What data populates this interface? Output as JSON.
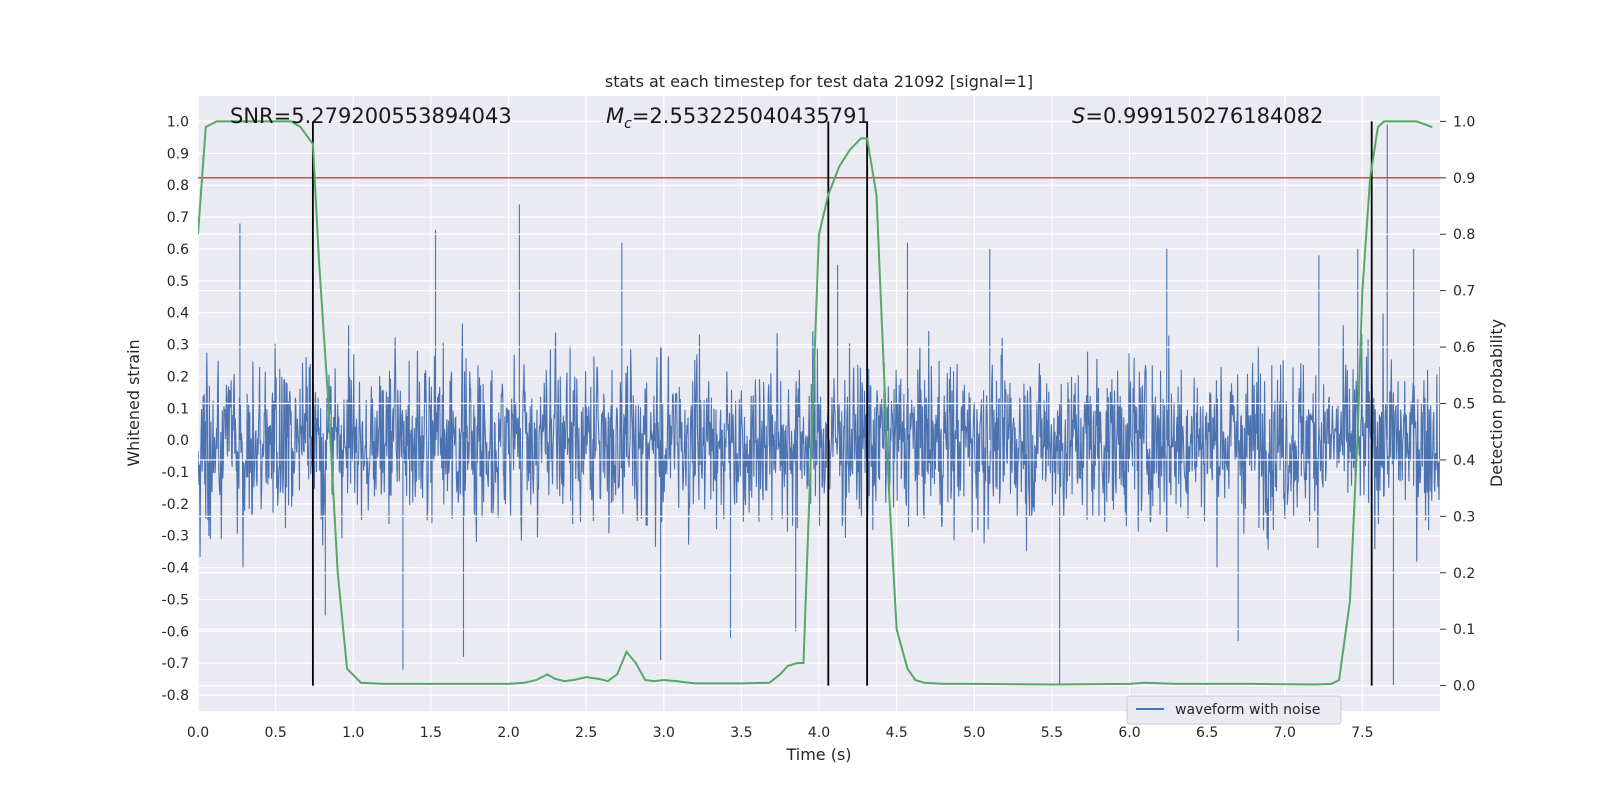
{
  "chart_data": {
    "type": "line",
    "title": "stats at each timestep for test data 21092 [signal=1]",
    "xlabel": "Time (s)",
    "ylabel_left": "Whitened strain",
    "ylabel_right": "Detection probability",
    "xlim": [
      0.0,
      8.0
    ],
    "ylim_left": [
      -0.85,
      1.08
    ],
    "ylim_right": [
      -0.045,
      1.045
    ],
    "xticks": [
      "0.0",
      "0.5",
      "1.0",
      "1.5",
      "2.0",
      "2.5",
      "3.0",
      "3.5",
      "4.0",
      "4.5",
      "5.0",
      "5.5",
      "6.0",
      "6.5",
      "7.0",
      "7.5"
    ],
    "yticks_left": [
      "-0.8",
      "-0.7",
      "-0.6",
      "-0.5",
      "-0.4",
      "-0.3",
      "-0.2",
      "-0.1",
      "0.0",
      "0.1",
      "0.2",
      "0.3",
      "0.4",
      "0.5",
      "0.6",
      "0.7",
      "0.8",
      "0.9",
      "1.0"
    ],
    "yticks_right": [
      "0.0",
      "0.1",
      "0.2",
      "0.3",
      "0.4",
      "0.5",
      "0.6",
      "0.7",
      "0.8",
      "0.9",
      "1.0"
    ],
    "annotations": {
      "snr": "SNR=5.279200553894043",
      "mc_symbol": "M",
      "mc_sub": "c",
      "mc_value": "=2.553225040435791",
      "s_symbol": "S",
      "s_value": "=0.999150276184082"
    },
    "threshold": {
      "axis": "right",
      "value": 0.9,
      "color": "#c44e52"
    },
    "vertical_markers_s": [
      0.74,
      4.06,
      4.31,
      7.56
    ],
    "waveform": {
      "name": "waveform with noise",
      "color": "#4c72b0",
      "core_amplitude": 0.3,
      "spikes": [
        [
          0.27,
          0.68
        ],
        [
          0.82,
          -0.55
        ],
        [
          1.32,
          -0.72
        ],
        [
          1.53,
          0.66
        ],
        [
          1.71,
          -0.68
        ],
        [
          2.07,
          0.74
        ],
        [
          2.73,
          0.62
        ],
        [
          2.98,
          -0.69
        ],
        [
          3.43,
          -0.62
        ],
        [
          3.85,
          -0.6
        ],
        [
          4.12,
          0.55
        ],
        [
          4.57,
          0.62
        ],
        [
          5.1,
          0.6
        ],
        [
          5.55,
          -0.77
        ],
        [
          6.24,
          0.6
        ],
        [
          6.7,
          -0.63
        ],
        [
          7.22,
          0.58
        ],
        [
          7.47,
          0.6
        ],
        [
          7.66,
          0.99
        ],
        [
          7.7,
          -0.77
        ],
        [
          7.83,
          0.6
        ]
      ]
    },
    "detection_probability": {
      "color": "#55a868",
      "x": [
        0.0,
        0.05,
        0.12,
        0.2,
        0.3,
        0.4,
        0.5,
        0.6,
        0.66,
        0.74,
        0.78,
        0.84,
        0.9,
        0.96,
        1.05,
        1.2,
        1.5,
        2.0,
        2.1,
        2.18,
        2.25,
        2.3,
        2.36,
        2.42,
        2.5,
        2.58,
        2.64,
        2.7,
        2.76,
        2.82,
        2.88,
        2.94,
        3.0,
        3.08,
        3.2,
        3.5,
        3.68,
        3.75,
        3.8,
        3.86,
        3.9,
        3.94,
        4.0,
        4.06,
        4.13,
        4.2,
        4.27,
        4.31,
        4.37,
        4.45,
        4.5,
        4.57,
        4.62,
        4.68,
        4.8,
        5.0,
        5.5,
        6.0,
        6.1,
        6.3,
        6.8,
        7.2,
        7.3,
        7.35,
        7.42,
        7.47,
        7.5,
        7.55,
        7.6,
        7.64,
        7.7,
        7.78,
        7.85,
        7.95
      ],
      "y": [
        0.8,
        0.99,
        1.0,
        1.0,
        1.0,
        1.0,
        1.0,
        1.0,
        0.99,
        0.96,
        0.75,
        0.5,
        0.2,
        0.03,
        0.005,
        0.003,
        0.003,
        0.003,
        0.005,
        0.01,
        0.02,
        0.012,
        0.008,
        0.01,
        0.015,
        0.012,
        0.008,
        0.02,
        0.06,
        0.04,
        0.01,
        0.008,
        0.01,
        0.008,
        0.004,
        0.004,
        0.005,
        0.02,
        0.035,
        0.04,
        0.04,
        0.35,
        0.8,
        0.87,
        0.92,
        0.95,
        0.97,
        0.97,
        0.87,
        0.35,
        0.1,
        0.03,
        0.01,
        0.005,
        0.003,
        0.003,
        0.002,
        0.003,
        0.005,
        0.003,
        0.003,
        0.002,
        0.003,
        0.01,
        0.15,
        0.45,
        0.7,
        0.9,
        0.99,
        1.0,
        1.0,
        1.0,
        1.0,
        0.99
      ]
    },
    "legend": {
      "position": "lower-right",
      "label": "waveform with noise"
    }
  }
}
